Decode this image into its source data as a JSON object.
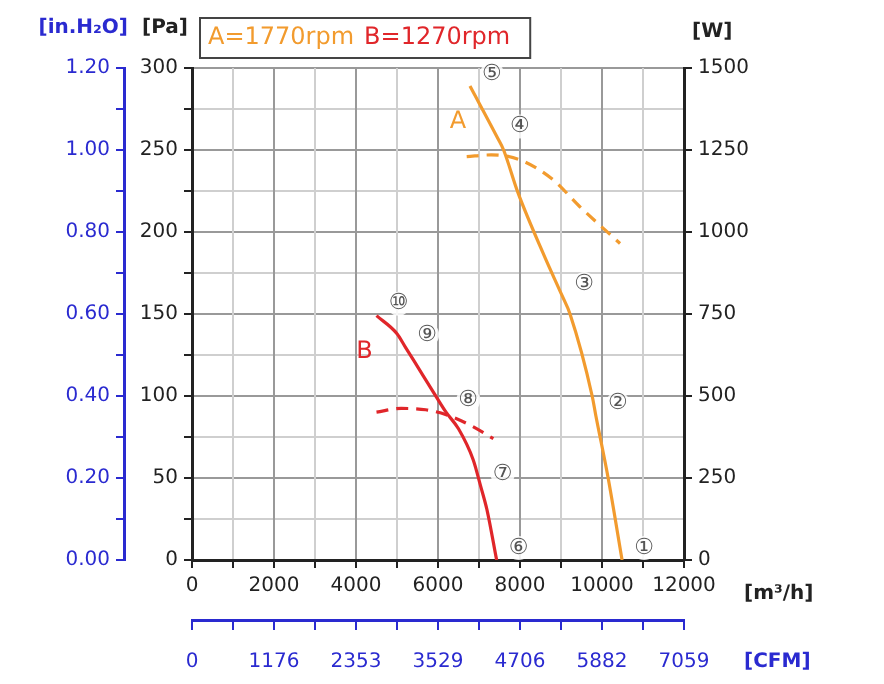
{
  "chart_data": {
    "type": "line",
    "xlabel": "[m³/h]",
    "ylabel": "[Pa]",
    "y2label": "[W]",
    "y3label": "[in.H₂O]",
    "x2label": "[CFM]",
    "xlim": [
      0,
      12000
    ],
    "xticks": [
      0,
      {
        "value": 1000,
        "label": null
      },
      2000,
      {
        "value": 3000,
        "label": null
      },
      4000,
      {
        "value": 5000,
        "label": null
      },
      6000,
      {
        "value": 7000,
        "label": null
      },
      8000,
      {
        "value": 9000,
        "label": null
      },
      10000,
      {
        "value": 11000,
        "label": null
      },
      12000
    ],
    "ylim": [
      0,
      300
    ],
    "yticks": [
      0,
      {
        "value": 25,
        "label": null
      },
      50,
      {
        "value": 75,
        "label": null
      },
      100,
      {
        "value": 125,
        "label": null
      },
      150,
      {
        "value": 175,
        "label": null
      },
      200,
      {
        "value": 225,
        "label": null
      },
      250,
      {
        "value": 275,
        "label": null
      },
      300
    ],
    "y2lim": [
      0,
      1500
    ],
    "y2ticks": [
      0,
      250,
      500,
      750,
      1000,
      1250,
      1500
    ],
    "y3lim": [
      0,
      1.2
    ],
    "y3ticks": [
      {
        "value": 0,
        "label": "0.00"
      },
      {
        "value": 0.1,
        "label": null
      },
      {
        "value": 0.2,
        "label": "0.20"
      },
      {
        "value": 0.3,
        "label": null
      },
      {
        "value": 0.4,
        "label": "0.40"
      },
      {
        "value": 0.5,
        "label": null
      },
      {
        "value": 0.6,
        "label": "0.60"
      },
      {
        "value": 0.7,
        "label": null
      },
      {
        "value": 0.8,
        "label": "0.80"
      },
      {
        "value": 0.9,
        "label": null
      },
      {
        "value": 1.0,
        "label": "1.00"
      },
      {
        "value": 1.1,
        "label": null
      },
      {
        "value": 1.2,
        "label": "1.20"
      }
    ],
    "x2lim": [
      0,
      7059
    ],
    "x2ticks": [
      0,
      {
        "value": 588,
        "label": null
      },
      1176,
      {
        "value": 1765,
        "label": null
      },
      2353,
      {
        "value": 2941,
        "label": null
      },
      3529,
      {
        "value": 4118,
        "label": null
      },
      4706,
      {
        "value": 5294,
        "label": null
      },
      5882,
      {
        "value": 6471,
        "label": null
      },
      7059
    ],
    "grid": true,
    "marker": "none",
    "series": [
      {
        "name": "A",
        "color": "#f29b2e",
        "line_style": "solid",
        "x": [
          6780,
          7460,
          7600,
          7950,
          8600,
          9030,
          9220,
          9760,
          9850,
          10150,
          10490
        ],
        "values": [
          289,
          257,
          250,
          224,
          185,
          161,
          150,
          100,
          88,
          50,
          0
        ]
      },
      {
        "color": "#f29b2e",
        "axis": "y2",
        "line_style": "dashed",
        "x": [
          6700,
          7300,
          8000,
          8800,
          9460,
          10440
        ],
        "values": [
          1230,
          1235,
          1220,
          1160,
          1077,
          965
        ]
      },
      {
        "name": "B",
        "color": "#e0262a",
        "line_style": "solid",
        "x": [
          4500,
          5000,
          5200,
          5400,
          5970,
          6200,
          6500,
          6860,
          7040,
          7200,
          7430
        ],
        "values": [
          149,
          138,
          130,
          122,
          99,
          90,
          80,
          61,
          45,
          30,
          0
        ]
      },
      {
        "color": "#e0262a",
        "axis": "y2",
        "line_style": "dashed",
        "x": [
          4500,
          5100,
          5700,
          6200,
          6800,
          7350
        ],
        "values": [
          451,
          462,
          458,
          443,
          410,
          370
        ]
      }
    ],
    "annotations": [
      {
        "text": "①",
        "x": 10490,
        "y": 0
      },
      {
        "text": "②",
        "x": 9850,
        "y": 88
      },
      {
        "text": "③",
        "x": 9030,
        "y": 161
      },
      {
        "text": "④",
        "x": 7460,
        "y": 257
      },
      {
        "text": "⑤",
        "x": 6780,
        "y": 289
      },
      {
        "text": "⑥",
        "x": 7430,
        "y": 0
      },
      {
        "text": "⑦",
        "x": 7040,
        "y": 45
      },
      {
        "text": "⑧",
        "x": 6200,
        "y": 90
      },
      {
        "text": "⑨",
        "x": 5200,
        "y": 130
      },
      {
        "text": "⑩",
        "x": 4500,
        "y": 149
      },
      "A=1770rpm",
      "B=1270rpm"
    ]
  }
}
